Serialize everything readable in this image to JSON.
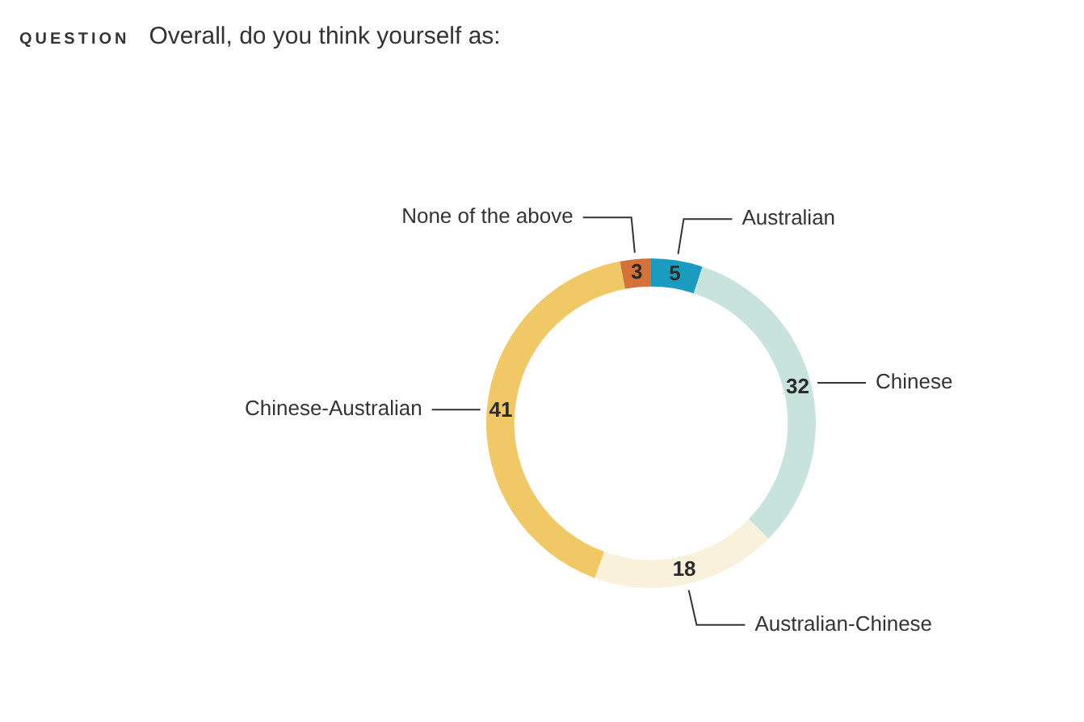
{
  "chart_data": {
    "type": "donut",
    "title": "Overall, do you think yourself as:",
    "annotations": [
      "QUESTION"
    ],
    "categories": [
      "Australian",
      "Chinese",
      "Australian-Chinese",
      "Chinese-Australian",
      "None of the above"
    ],
    "values": [
      5,
      32,
      18,
      41,
      3
    ],
    "colors": [
      "#1a9bbf",
      "#c8e3dc",
      "#faf1dc",
      "#f0c866",
      "#d4723a"
    ],
    "data_labels": true,
    "legend": false
  }
}
